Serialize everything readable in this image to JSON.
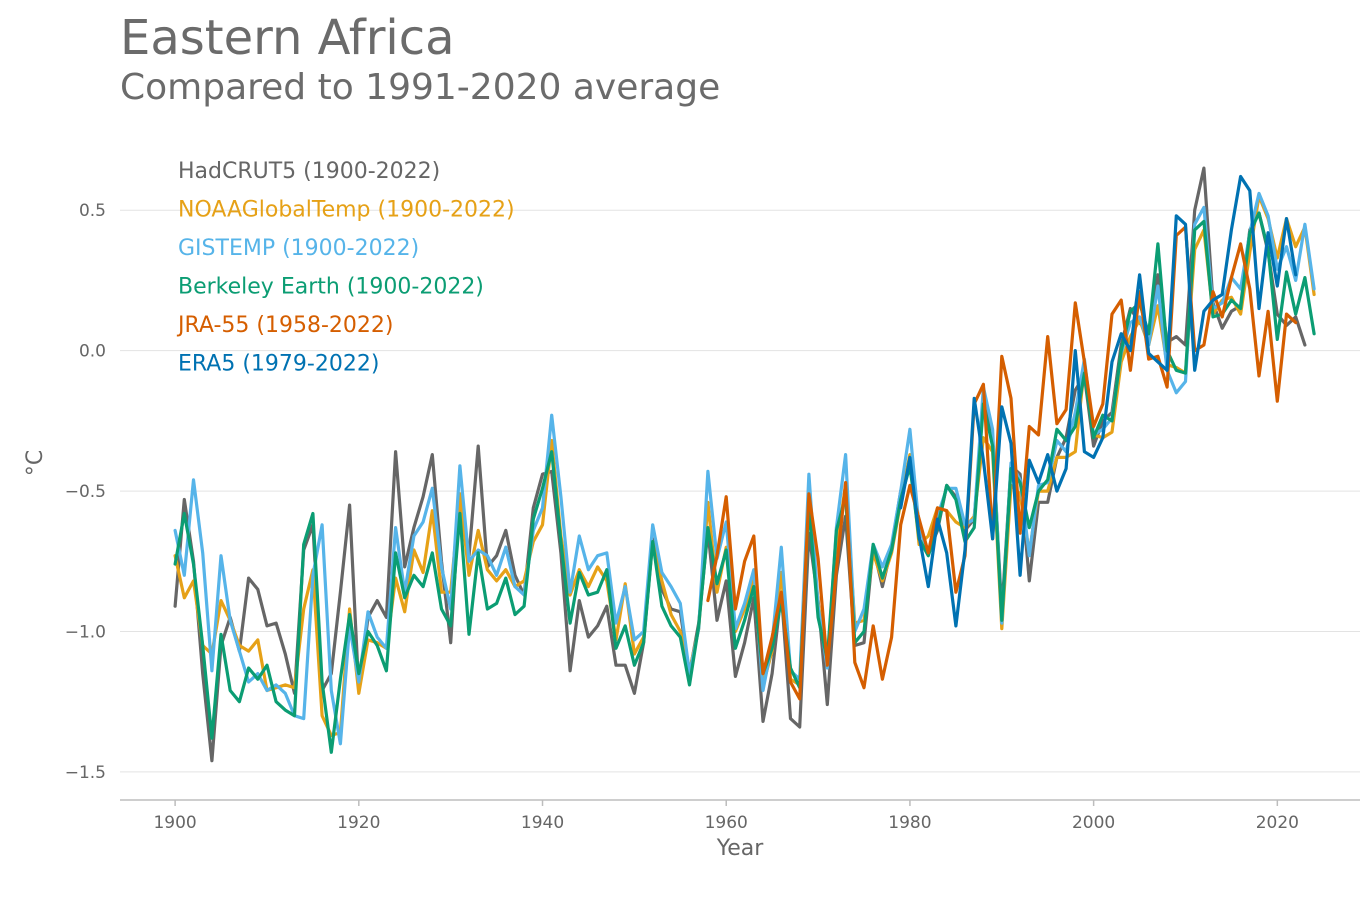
{
  "header": {
    "title": "Eastern Africa",
    "subtitle": "Compared to 1991-2020 average"
  },
  "chart_data": {
    "type": "line",
    "title": "Eastern Africa",
    "subtitle": "Compared to 1991-2020 average",
    "xlabel": "Year",
    "ylabel": "°C",
    "xlim": [
      1894,
      2029
    ],
    "ylim": [
      -1.6,
      0.75
    ],
    "xticks": [
      1900,
      1920,
      1940,
      1960,
      1980,
      2000,
      2020
    ],
    "xtick_labels": [
      "1900",
      "1920",
      "1940",
      "1960",
      "1980",
      "2000",
      "2020"
    ],
    "yticks": [
      0.5,
      0.0,
      -0.5,
      -1.0,
      -1.5
    ],
    "ytick_labels": [
      "0.5",
      "0.0",
      "−0.5",
      "−1.0",
      "−1.5"
    ],
    "grid": "horizontal",
    "legend_position": "top-left",
    "series": [
      {
        "name": "HadCRUT5 (1900-2022)",
        "color": "#666666",
        "x_start": 1900,
        "values": [
          -0.91,
          -0.53,
          -0.75,
          -1.15,
          -1.46,
          -1.05,
          -0.95,
          -1.07,
          -0.81,
          -0.85,
          -0.98,
          -0.97,
          -1.08,
          -1.22,
          -0.71,
          -0.62,
          -1.21,
          -1.15,
          -0.86,
          -0.55,
          -1.21,
          -0.95,
          -0.89,
          -0.95,
          -0.36,
          -0.77,
          -0.63,
          -0.52,
          -0.37,
          -0.75,
          -1.04,
          -0.51,
          -0.73,
          -0.34,
          -0.77,
          -0.73,
          -0.64,
          -0.8,
          -0.87,
          -0.56,
          -0.44,
          -0.43,
          -0.72,
          -1.14,
          -0.89,
          -1.02,
          -0.98,
          -0.91,
          -1.12,
          -1.12,
          -1.22,
          -1.04,
          -0.67,
          -0.85,
          -0.92,
          -0.93,
          -1.15,
          -0.97,
          -0.64,
          -0.96,
          -0.82,
          -1.16,
          -1.04,
          -0.88,
          -1.32,
          -1.15,
          -0.86,
          -1.31,
          -1.34,
          -0.65,
          -0.89,
          -1.26,
          -0.8,
          -0.59,
          -1.05,
          -1.04,
          -0.7,
          -0.84,
          -0.7,
          -0.5,
          -0.41,
          -0.61,
          -0.72,
          -0.64,
          -0.48,
          -0.52,
          -0.64,
          -0.6,
          -0.18,
          -0.32,
          -0.93,
          -0.41,
          -0.44,
          -0.82,
          -0.54,
          -0.54,
          -0.38,
          -0.31,
          -0.14,
          -0.09,
          -0.34,
          -0.25,
          -0.22,
          0.02,
          0.15,
          0.1,
          0.06,
          0.27,
          0.03,
          0.05,
          0.02,
          0.5,
          0.65,
          0.17,
          0.08,
          0.14,
          0.16,
          0.43,
          0.49,
          0.35,
          0.13,
          0.09,
          0.12,
          0.02
        ]
      },
      {
        "name": "NOAAGlobalTemp (1900-2022)",
        "color": "#e6a117",
        "x_start": 1900,
        "values": [
          -0.73,
          -0.88,
          -0.82,
          -1.05,
          -1.08,
          -0.89,
          -0.96,
          -1.05,
          -1.07,
          -1.03,
          -1.21,
          -1.2,
          -1.19,
          -1.2,
          -0.92,
          -0.78,
          -1.3,
          -1.37,
          -1.36,
          -0.92,
          -1.22,
          -1.03,
          -1.04,
          -1.06,
          -0.81,
          -0.93,
          -0.71,
          -0.79,
          -0.57,
          -0.86,
          -0.86,
          -0.51,
          -0.8,
          -0.64,
          -0.78,
          -0.82,
          -0.78,
          -0.84,
          -0.82,
          -0.68,
          -0.62,
          -0.32,
          -0.66,
          -0.87,
          -0.78,
          -0.84,
          -0.77,
          -0.82,
          -1.03,
          -0.83,
          -1.08,
          -1.02,
          -0.68,
          -0.82,
          -0.94,
          -1.0,
          -1.14,
          -0.99,
          -0.54,
          -0.86,
          -0.7,
          -1.0,
          -0.92,
          -0.81,
          -1.19,
          -1.07,
          -0.79,
          -1.17,
          -1.19,
          -0.52,
          -0.9,
          -1.1,
          -0.7,
          -0.48,
          -0.97,
          -0.96,
          -0.72,
          -0.82,
          -0.72,
          -0.54,
          -0.37,
          -0.69,
          -0.66,
          -0.56,
          -0.57,
          -0.61,
          -0.63,
          -0.59,
          -0.31,
          -0.36,
          -0.99,
          -0.48,
          -0.51,
          -0.72,
          -0.5,
          -0.5,
          -0.38,
          -0.38,
          -0.36,
          -0.06,
          -0.3,
          -0.31,
          -0.29,
          -0.04,
          0.05,
          0.11,
          0.02,
          0.16,
          -0.05,
          -0.06,
          -0.08,
          0.36,
          0.43,
          0.13,
          0.18,
          0.19,
          0.13,
          0.35,
          0.55,
          0.47,
          0.33,
          0.47,
          0.37,
          0.44,
          0.2
        ]
      },
      {
        "name": "GISTEMP (1900-2022)",
        "color": "#56b4e9",
        "x_start": 1900,
        "values": [
          -0.64,
          -0.8,
          -0.46,
          -0.72,
          -1.14,
          -0.73,
          -0.96,
          -1.07,
          -1.18,
          -1.15,
          -1.21,
          -1.19,
          -1.22,
          -1.3,
          -1.31,
          -0.8,
          -0.62,
          -1.21,
          -1.4,
          -0.98,
          -1.18,
          -0.93,
          -1.02,
          -1.06,
          -0.63,
          -0.86,
          -0.66,
          -0.61,
          -0.49,
          -0.77,
          -0.92,
          -0.41,
          -0.75,
          -0.71,
          -0.73,
          -0.8,
          -0.7,
          -0.84,
          -0.87,
          -0.64,
          -0.56,
          -0.23,
          -0.52,
          -0.86,
          -0.66,
          -0.78,
          -0.73,
          -0.72,
          -0.97,
          -0.84,
          -1.03,
          -1.0,
          -0.62,
          -0.79,
          -0.84,
          -0.9,
          -1.15,
          -0.99,
          -0.43,
          -0.74,
          -0.61,
          -0.99,
          -0.9,
          -0.78,
          -1.21,
          -1.04,
          -0.7,
          -1.14,
          -1.17,
          -0.44,
          -0.91,
          -1.13,
          -0.63,
          -0.37,
          -1.0,
          -0.92,
          -0.69,
          -0.77,
          -0.69,
          -0.5,
          -0.28,
          -0.63,
          -0.72,
          -0.59,
          -0.49,
          -0.49,
          -0.62,
          -0.6,
          -0.13,
          -0.28,
          -0.97,
          -0.4,
          -0.46,
          -0.73,
          -0.48,
          -0.47,
          -0.32,
          -0.36,
          -0.22,
          -0.03,
          -0.3,
          -0.28,
          -0.24,
          -0.01,
          0.1,
          0.12,
          0.02,
          0.23,
          -0.07,
          -0.15,
          -0.11,
          0.45,
          0.51,
          0.15,
          0.17,
          0.26,
          0.22,
          0.42,
          0.56,
          0.48,
          0.29,
          0.37,
          0.25,
          0.45,
          0.22
        ]
      },
      {
        "name": "Berkeley Earth (1900-2022)",
        "color": "#0b9d73",
        "x_start": 1900,
        "values": [
          -0.76,
          -0.58,
          -0.76,
          -1.05,
          -1.38,
          -1.01,
          -1.21,
          -1.25,
          -1.13,
          -1.17,
          -1.12,
          -1.25,
          -1.28,
          -1.3,
          -0.69,
          -0.58,
          -1.18,
          -1.43,
          -1.17,
          -0.94,
          -1.15,
          -1.0,
          -1.05,
          -1.14,
          -0.72,
          -0.88,
          -0.8,
          -0.84,
          -0.72,
          -0.92,
          -0.98,
          -0.58,
          -1.01,
          -0.72,
          -0.92,
          -0.9,
          -0.81,
          -0.94,
          -0.91,
          -0.6,
          -0.49,
          -0.36,
          -0.68,
          -0.97,
          -0.79,
          -0.87,
          -0.86,
          -0.78,
          -1.06,
          -0.98,
          -1.12,
          -1.04,
          -0.68,
          -0.91,
          -0.98,
          -1.02,
          -1.19,
          -0.98,
          -0.63,
          -0.83,
          -0.71,
          -1.06,
          -0.96,
          -0.84,
          -1.15,
          -1.06,
          -0.89,
          -1.13,
          -1.2,
          -0.55,
          -0.95,
          -1.1,
          -0.64,
          -0.52,
          -1.04,
          -1.0,
          -0.69,
          -0.81,
          -0.71,
          -0.53,
          -0.41,
          -0.67,
          -0.73,
          -0.63,
          -0.48,
          -0.53,
          -0.68,
          -0.63,
          -0.19,
          -0.34,
          -0.96,
          -0.42,
          -0.47,
          -0.63,
          -0.5,
          -0.46,
          -0.28,
          -0.32,
          -0.27,
          -0.08,
          -0.31,
          -0.23,
          -0.25,
          0.0,
          0.14,
          0.17,
          0.06,
          0.38,
          0.0,
          -0.07,
          -0.08,
          0.43,
          0.46,
          0.12,
          0.13,
          0.18,
          0.15,
          0.42,
          0.49,
          0.36,
          0.04,
          0.28,
          0.13,
          0.26,
          0.06
        ]
      },
      {
        "name": "JRA-55 (1958-2022)",
        "color": "#d55e00",
        "x_start": 1958,
        "values": [
          -0.89,
          -0.73,
          -0.52,
          -0.92,
          -0.75,
          -0.66,
          -1.15,
          -1.02,
          -0.86,
          -1.18,
          -1.24,
          -0.51,
          -0.74,
          -1.12,
          -0.78,
          -0.47,
          -1.11,
          -1.2,
          -0.98,
          -1.17,
          -1.02,
          -0.62,
          -0.48,
          -0.6,
          -0.72,
          -0.56,
          -0.57,
          -0.86,
          -0.73,
          -0.19,
          -0.12,
          -0.67,
          -0.02,
          -0.17,
          -0.65,
          -0.27,
          -0.3,
          0.05,
          -0.26,
          -0.21,
          0.17,
          -0.04,
          -0.27,
          -0.19,
          0.13,
          0.18,
          -0.07,
          0.21,
          -0.03,
          -0.02,
          -0.13,
          0.41,
          0.44,
          0.0,
          0.02,
          0.21,
          0.12,
          0.26,
          0.38,
          0.22,
          -0.09,
          0.14,
          -0.18,
          0.13,
          0.1
        ]
      },
      {
        "name": "ERA5 (1979-2022)",
        "color": "#0072b2",
        "x_start": 1979,
        "values": [
          -0.56,
          -0.38,
          -0.66,
          -0.84,
          -0.6,
          -0.72,
          -0.98,
          -0.71,
          -0.17,
          -0.39,
          -0.67,
          -0.2,
          -0.33,
          -0.8,
          -0.39,
          -0.47,
          -0.37,
          -0.5,
          -0.42,
          0.0,
          -0.36,
          -0.38,
          -0.31,
          -0.04,
          0.06,
          0.0,
          0.27,
          -0.01,
          -0.04,
          -0.07,
          0.48,
          0.45,
          -0.07,
          0.14,
          0.18,
          0.2,
          0.43,
          0.62,
          0.57,
          0.15,
          0.42,
          0.23,
          0.47,
          0.27
        ]
      }
    ]
  }
}
